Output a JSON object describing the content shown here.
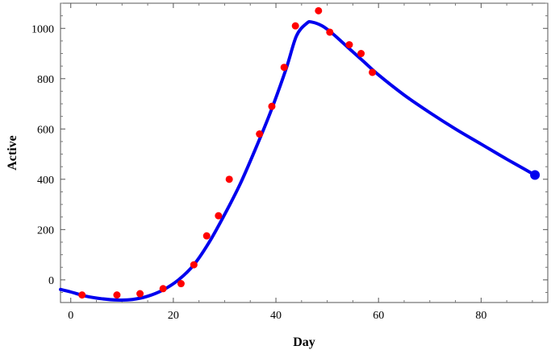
{
  "chart_data": {
    "type": "scatter",
    "title": "",
    "xlabel": "Day",
    "ylabel": "Active",
    "xlim": [
      -2,
      93
    ],
    "ylim": [
      -90,
      1100
    ],
    "x_ticks": [
      0,
      20,
      40,
      60,
      80
    ],
    "y_ticks": [
      0,
      200,
      400,
      600,
      800,
      1000
    ],
    "grid": false,
    "colors": {
      "points": "#ff0000",
      "fit_line": "#0000ee",
      "endpoint": "#0000ee"
    },
    "series": [
      {
        "kind": "points",
        "x": [
          2.2,
          9,
          13.5,
          18,
          21.5,
          24,
          26.5,
          28.8,
          30.9,
          36.8,
          39.2,
          41.6,
          43.8,
          48.3,
          50.5,
          54.3,
          56.6,
          58.8
        ],
        "y": [
          -60,
          -60,
          -55,
          -35,
          -15,
          60,
          175,
          255,
          400,
          580,
          690,
          845,
          1010,
          1070,
          985,
          935,
          900,
          825
        ]
      },
      {
        "kind": "line",
        "x": [
          -2,
          0,
          3,
          6,
          9,
          12,
          15,
          18,
          21,
          24,
          27,
          30,
          33,
          36,
          39,
          42,
          44,
          46,
          47,
          49,
          51,
          54,
          57,
          60,
          65,
          70,
          75,
          80,
          85,
          90.5
        ],
        "y": [
          -38,
          -48,
          -65,
          -75,
          -80,
          -78,
          -65,
          -40,
          0,
          60,
          150,
          260,
          380,
          520,
          670,
          840,
          970,
          1020,
          1025,
          1010,
          980,
          925,
          870,
          815,
          735,
          665,
          600,
          540,
          480,
          417
        ]
      },
      {
        "kind": "endpoint",
        "x": [
          90.5
        ],
        "y": [
          417
        ]
      }
    ]
  }
}
